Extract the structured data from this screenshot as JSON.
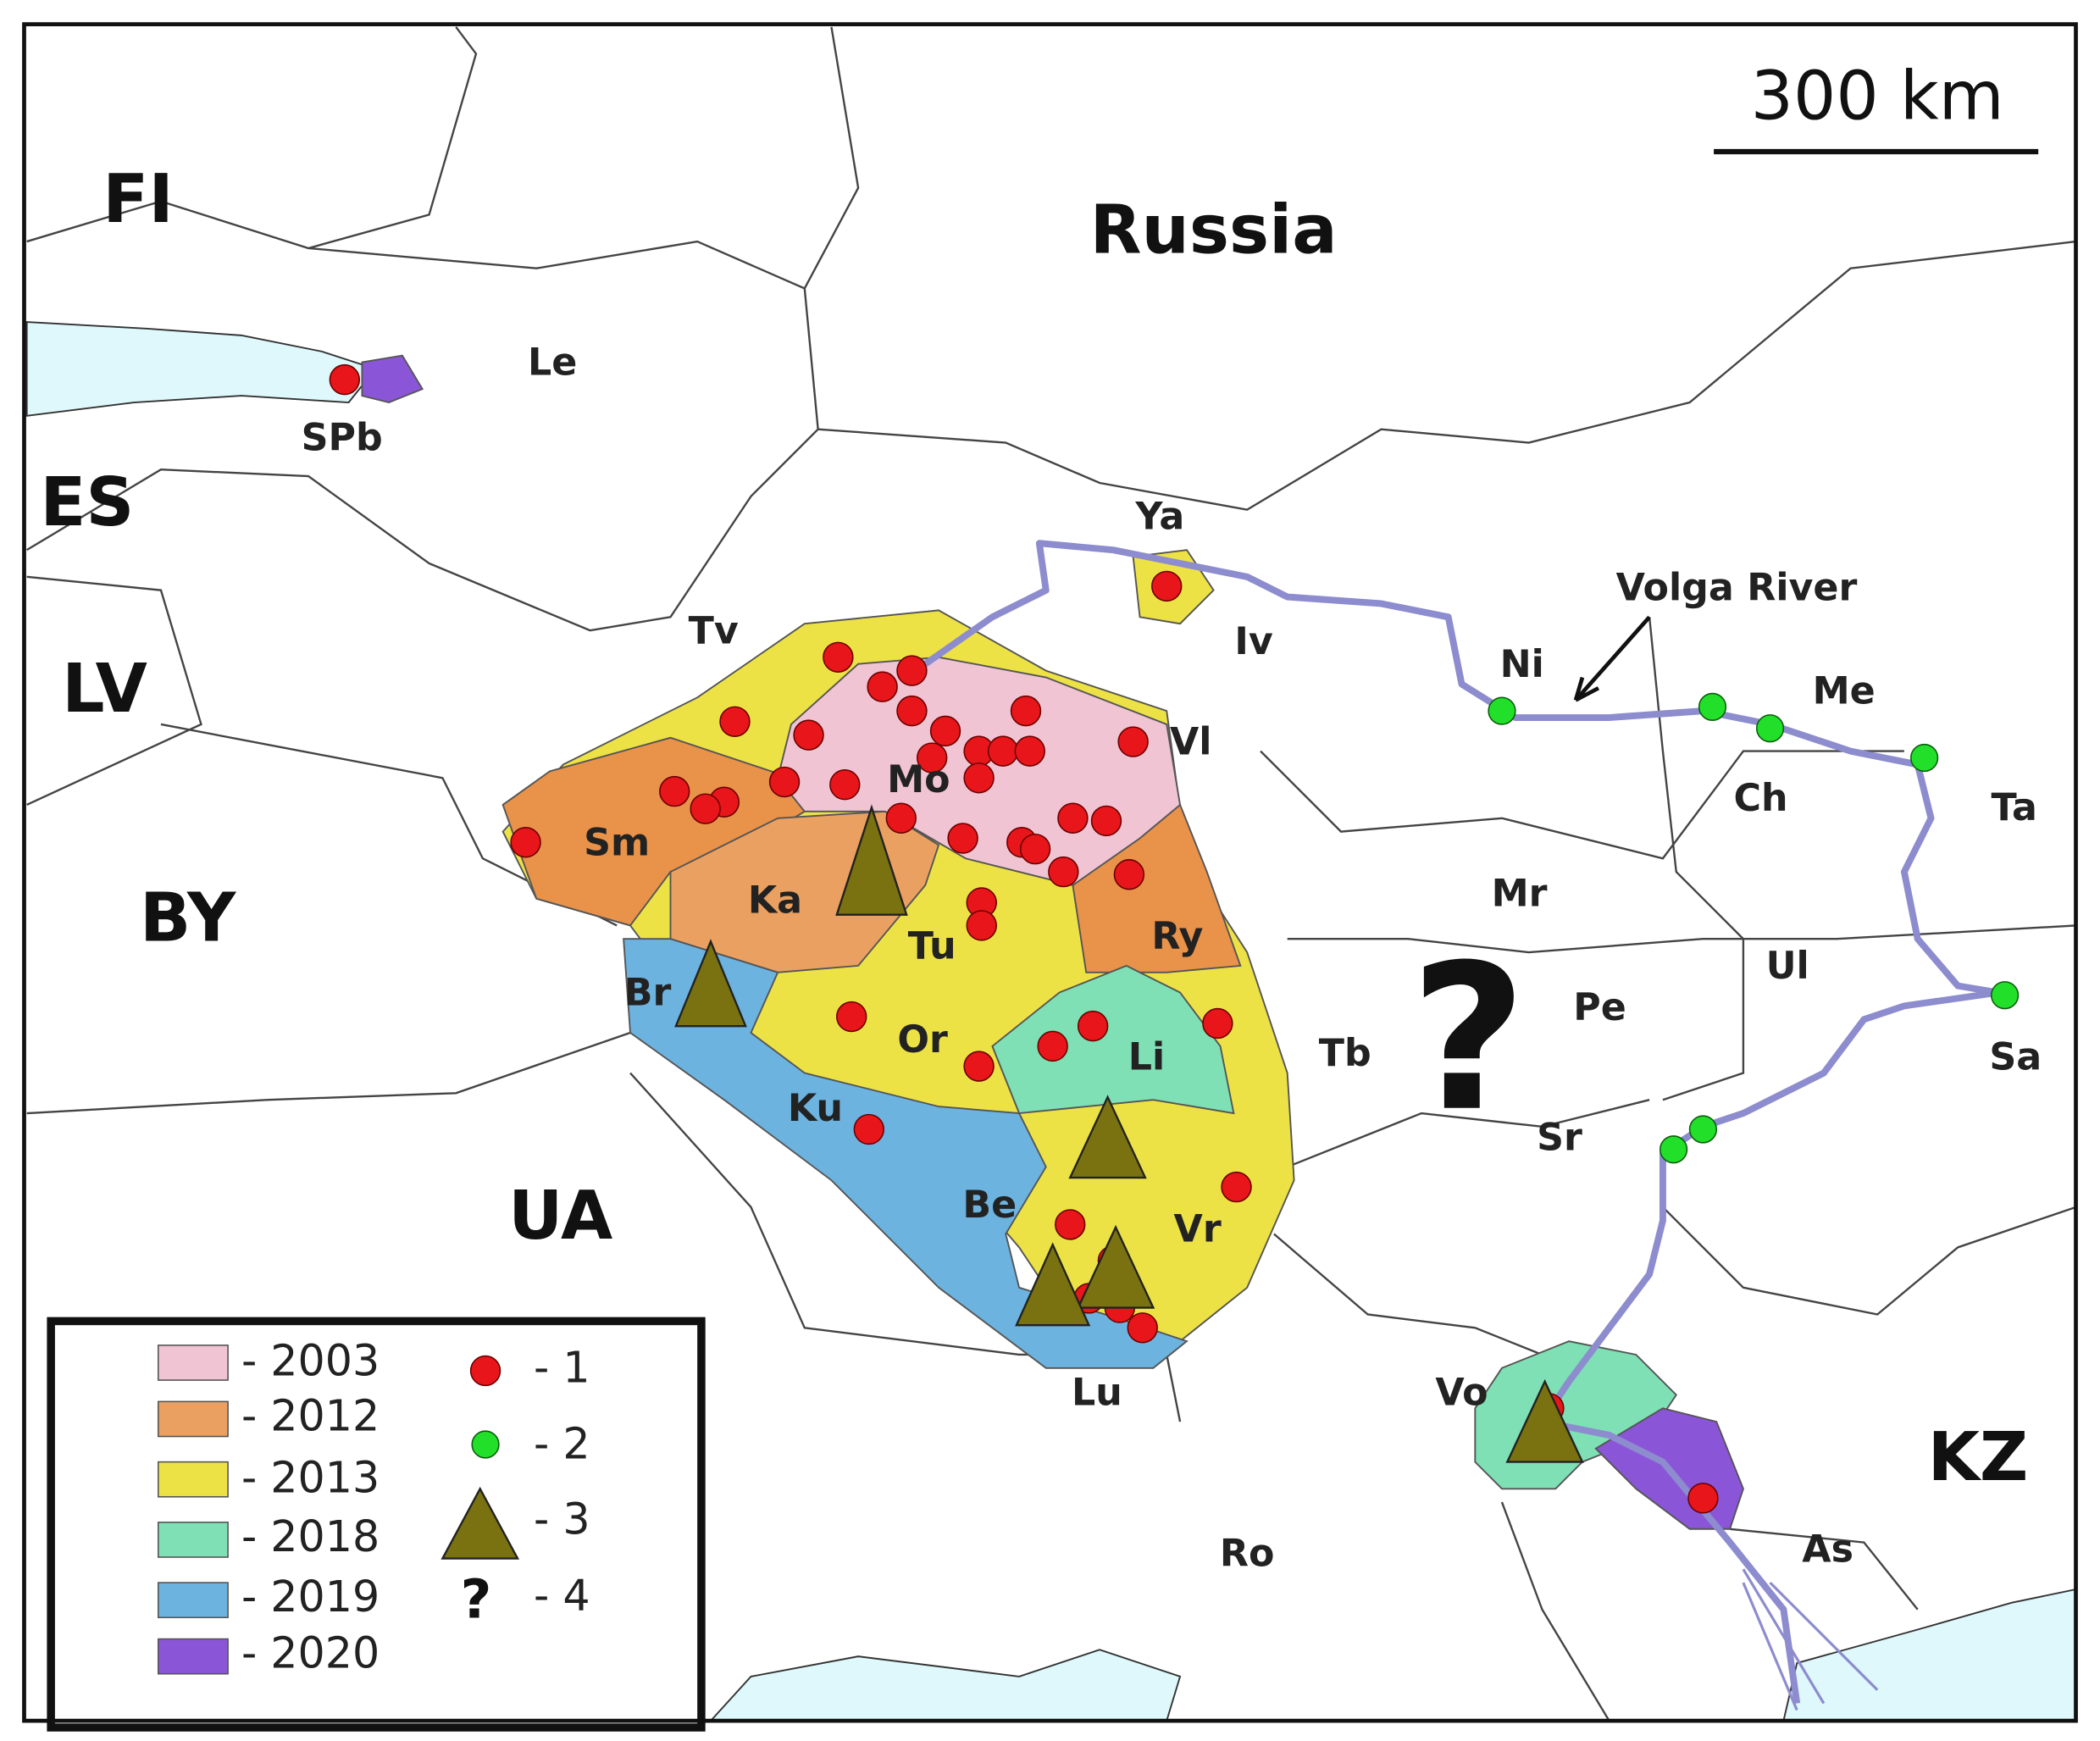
{
  "scale_bar": "300 km",
  "countries": {
    "fi": "FI",
    "es": "ES",
    "lv": "LV",
    "by": "BY",
    "ua": "UA",
    "russia": "Russia",
    "kz": "KZ"
  },
  "regions": {
    "spb": "SPb",
    "le": "Le",
    "ya": "Ya",
    "iv": "Iv",
    "tv": "Tv",
    "ni": "Ni",
    "me": "Me",
    "vl": "Vl",
    "mo": "Mo",
    "sm": "Sm",
    "ka": "Ka",
    "tu": "Tu",
    "ry": "Ry",
    "ch": "Ch",
    "ta": "Ta",
    "mr": "Mr",
    "ul": "Ul",
    "pe": "Pe",
    "br": "Br",
    "or": "Or",
    "li": "Li",
    "tb": "Tb",
    "sa": "Sa",
    "ku": "Ku",
    "sr": "Sr",
    "be": "Be",
    "vr": "Vr",
    "lu": "Lu",
    "vo": "Vo",
    "ro": "Ro",
    "as": "As"
  },
  "annotations": {
    "river": "Volga River",
    "unknown": "?"
  },
  "legend": {
    "years": [
      "- 2003",
      "- 2012",
      "- 2013",
      "- 2018",
      "- 2019",
      "- 2020"
    ],
    "symbols": [
      "- 1",
      "- 2",
      "- 3",
      "- 4"
    ],
    "question_symbol": "?"
  }
}
